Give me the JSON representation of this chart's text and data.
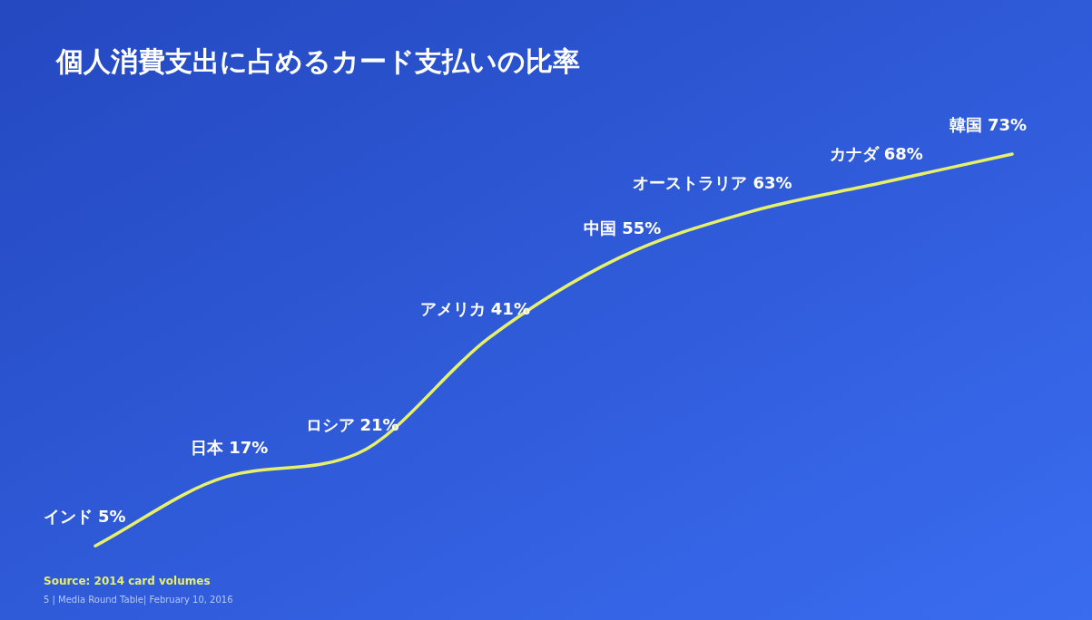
{
  "chart_data": {
    "type": "line",
    "title": "個人消費支出に占めるカード支払いの比率",
    "categories": [
      "インド",
      "日本",
      "ロシア",
      "アメリカ",
      "中国",
      "オーストラリア",
      "カナダ",
      "韓国"
    ],
    "series": [
      {
        "color": "#e6f06a",
        "values": [
          5,
          17,
          21,
          41,
          55,
          63,
          68,
          73
        ],
        "value_labels": [
          "5%",
          "17%",
          "21%",
          "41%",
          "55%",
          "63%",
          "68%",
          "73%"
        ]
      }
    ],
    "annotations": [
      "Source: 2014 card volumes",
      "5 | Media Round Table| February 10, 2016"
    ]
  }
}
